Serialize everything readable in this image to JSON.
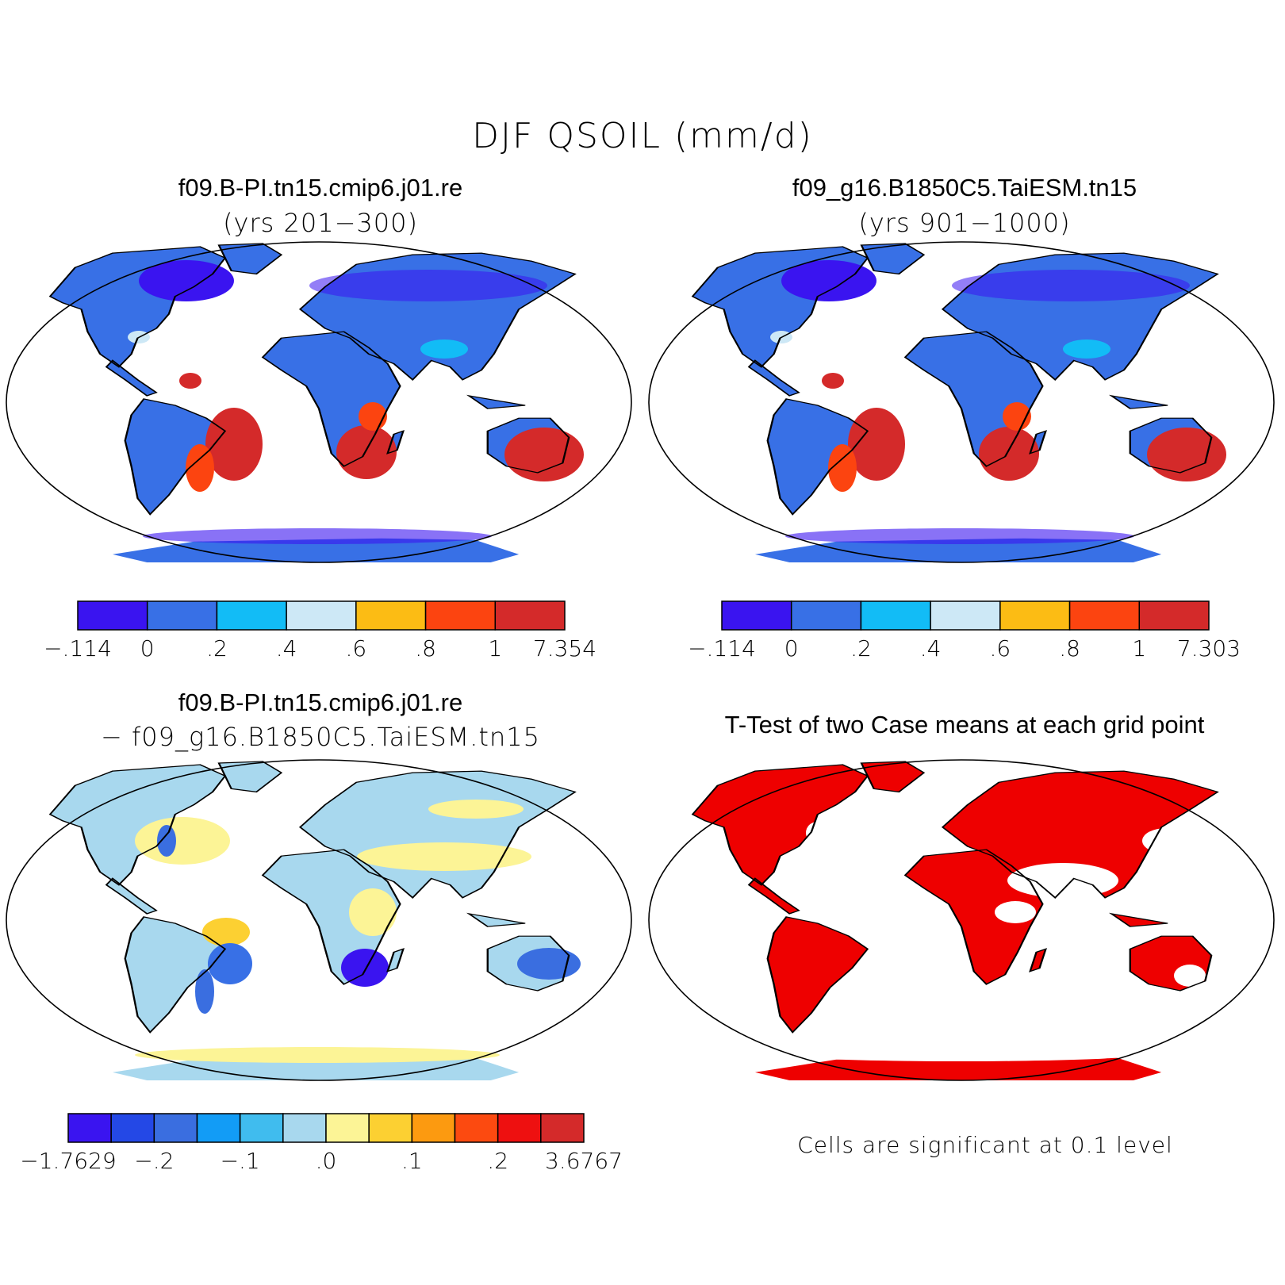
{
  "figure": {
    "title": "DJF QSOIL (mm/d)"
  },
  "panels": [
    {
      "id": "case1",
      "title": "f09.B-PI.tn15.cmip6.j01.re",
      "subtitle": "(yrs 201−300)",
      "colorbar": {
        "colors": [
          "#3a14f0",
          "#3870e6",
          "#12bcf6",
          "#cde8f6",
          "#fcbc14",
          "#fc4410",
          "#d42a2a"
        ],
        "labels": [
          "−.114",
          "0",
          ".2",
          ".4",
          ".6",
          ".8",
          "1",
          "7.354"
        ]
      }
    },
    {
      "id": "case2",
      "title": "f09_g16.B1850C5.TaiESM.tn15",
      "subtitle": "(yrs 901−1000)",
      "colorbar": {
        "colors": [
          "#3a14f0",
          "#3870e6",
          "#12bcf6",
          "#cde8f6",
          "#fcbc14",
          "#fc4410",
          "#d42a2a"
        ],
        "labels": [
          "−.114",
          "0",
          ".2",
          ".4",
          ".6",
          ".8",
          "1",
          "7.303"
        ]
      }
    },
    {
      "id": "diff",
      "title": "f09.B-PI.tn15.cmip6.j01.re",
      "subtitle": "− f09_g16.B1850C5.TaiESM.tn15",
      "colorbar": {
        "colors": [
          "#3a14f0",
          "#2448e6",
          "#3a6ee0",
          "#129cf6",
          "#40bcee",
          "#a8d8ee",
          "#fcf496",
          "#fcd032",
          "#fc9a10",
          "#fc4a10",
          "#ee1010",
          "#d42a2a"
        ],
        "labels": [
          "−1.7629",
          "−.2",
          "−.1",
          ".0",
          ".1",
          ".2",
          "3.6767"
        ]
      }
    },
    {
      "id": "ttest",
      "title": "T-Test of two Case means at each grid point",
      "note": "Cells are significant at 0.1 level",
      "colors": {
        "significant": "#ee0000"
      }
    }
  ]
}
